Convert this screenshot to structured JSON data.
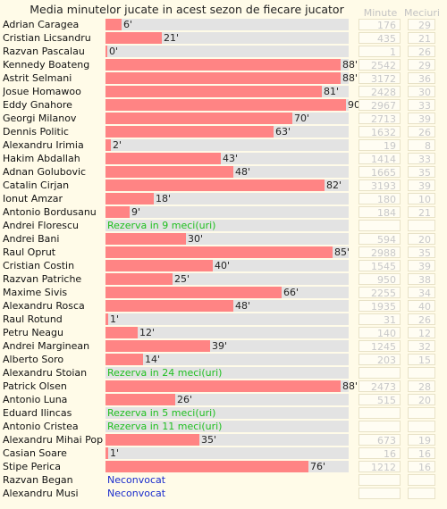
{
  "header": {
    "title": "Media minutelor jucate in acest sezon de fiecare jucator",
    "col_minutes": "Minute",
    "col_matches": "Meciuri"
  },
  "players": [
    {
      "name": "Adrian Caragea",
      "avg": 6,
      "label": "6'",
      "minutes": "176",
      "matches": "29"
    },
    {
      "name": "Cristian Licsandru",
      "avg": 21,
      "label": "21'",
      "minutes": "435",
      "matches": "21"
    },
    {
      "name": "Razvan Pascalau",
      "avg": 0,
      "label": "0'",
      "minutes": "1",
      "matches": "26"
    },
    {
      "name": "Kennedy Boateng",
      "avg": 88,
      "label": "88'",
      "minutes": "2542",
      "matches": "29"
    },
    {
      "name": "Astrit Selmani",
      "avg": 88,
      "label": "88'",
      "minutes": "3172",
      "matches": "36"
    },
    {
      "name": "Josue Homawoo",
      "avg": 81,
      "label": "81'",
      "minutes": "2428",
      "matches": "30"
    },
    {
      "name": "Eddy Gnahore",
      "avg": 90,
      "label": "90'",
      "minutes": "2967",
      "matches": "33"
    },
    {
      "name": "Georgi Milanov",
      "avg": 70,
      "label": "70'",
      "minutes": "2713",
      "matches": "39"
    },
    {
      "name": "Dennis Politic",
      "avg": 63,
      "label": "63'",
      "minutes": "1632",
      "matches": "26"
    },
    {
      "name": "Alexandru Irimia",
      "avg": 2,
      "label": "2'",
      "minutes": "19",
      "matches": "8"
    },
    {
      "name": "Hakim Abdallah",
      "avg": 43,
      "label": "43'",
      "minutes": "1414",
      "matches": "33"
    },
    {
      "name": "Adnan Golubovic",
      "avg": 48,
      "label": "48'",
      "minutes": "1665",
      "matches": "35"
    },
    {
      "name": "Catalin Cirjan",
      "avg": 82,
      "label": "82'",
      "minutes": "3193",
      "matches": "39"
    },
    {
      "name": "Ionut Amzar",
      "avg": 18,
      "label": "18'",
      "minutes": "180",
      "matches": "10"
    },
    {
      "name": "Antonio Bordusanu",
      "avg": 9,
      "label": "9'",
      "minutes": "184",
      "matches": "21"
    },
    {
      "name": "Andrei Florescu",
      "note": "Rezerva in 9 meci(uri)",
      "note_type": "reserve",
      "minutes": "",
      "matches": ""
    },
    {
      "name": "Andrei Bani",
      "avg": 30,
      "label": "30'",
      "minutes": "594",
      "matches": "20"
    },
    {
      "name": "Raul Oprut",
      "avg": 85,
      "label": "85'",
      "minutes": "2988",
      "matches": "35"
    },
    {
      "name": "Cristian Costin",
      "avg": 40,
      "label": "40'",
      "minutes": "1545",
      "matches": "39"
    },
    {
      "name": "Razvan Patriche",
      "avg": 25,
      "label": "25'",
      "minutes": "950",
      "matches": "38"
    },
    {
      "name": "Maxime Sivis",
      "avg": 66,
      "label": "66'",
      "minutes": "2255",
      "matches": "34"
    },
    {
      "name": "Alexandru Rosca",
      "avg": 48,
      "label": "48'",
      "minutes": "1935",
      "matches": "40"
    },
    {
      "name": "Raul Rotund",
      "avg": 1,
      "label": "1'",
      "minutes": "31",
      "matches": "26"
    },
    {
      "name": "Petru Neagu",
      "avg": 12,
      "label": "12'",
      "minutes": "140",
      "matches": "12"
    },
    {
      "name": "Andrei Marginean",
      "avg": 39,
      "label": "39'",
      "minutes": "1245",
      "matches": "32"
    },
    {
      "name": "Alberto Soro",
      "avg": 14,
      "label": "14'",
      "minutes": "203",
      "matches": "15"
    },
    {
      "name": "Alexandru Stoian",
      "note": "Rezerva in 24 meci(uri)",
      "note_type": "reserve",
      "minutes": "",
      "matches": ""
    },
    {
      "name": "Patrick Olsen",
      "avg": 88,
      "label": "88'",
      "minutes": "2473",
      "matches": "28"
    },
    {
      "name": "Antonio Luna",
      "avg": 26,
      "label": "26'",
      "minutes": "515",
      "matches": "20"
    },
    {
      "name": "Eduard Ilincas",
      "note": "Rezerva in 5 meci(uri)",
      "note_type": "reserve",
      "minutes": "",
      "matches": ""
    },
    {
      "name": "Antonio Cristea",
      "note": "Rezerva in 11 meci(uri)",
      "note_type": "reserve",
      "minutes": "",
      "matches": ""
    },
    {
      "name": "Alexandru Mihai Pop",
      "avg": 35,
      "label": "35'",
      "minutes": "673",
      "matches": "19"
    },
    {
      "name": "Casian Soare",
      "avg": 1,
      "label": "1'",
      "minutes": "16",
      "matches": "16"
    },
    {
      "name": "Stipe Perica",
      "avg": 76,
      "label": "76'",
      "minutes": "1212",
      "matches": "16"
    },
    {
      "name": "Razvan Began",
      "note": "Neconvocat",
      "note_type": "absent",
      "minutes": "",
      "matches": ""
    },
    {
      "name": "Alexandru Musi",
      "note": "Neconvocat",
      "note_type": "absent",
      "minutes": "",
      "matches": ""
    }
  ],
  "colors": {
    "bar": "#ff8484",
    "track": "#e3e3e3",
    "reserve_text": "#1fbf1f",
    "absent_text": "#1a2ccc",
    "background": "#fffbe8"
  }
}
